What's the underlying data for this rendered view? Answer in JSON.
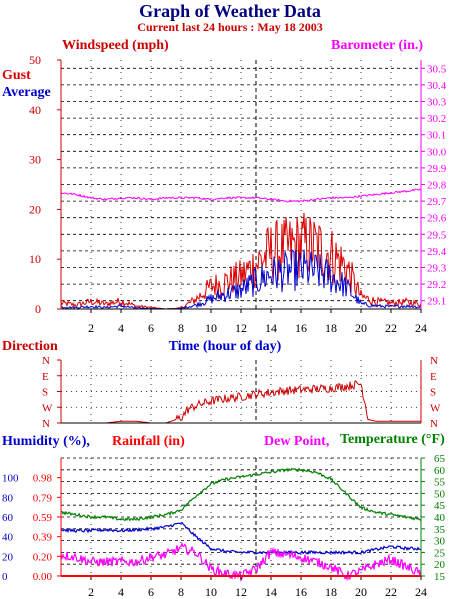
{
  "title": "Graph of Weather Data",
  "subtitle": "Current last 24 hours : May 18 2003",
  "colors": {
    "windspeed": "#ff0000",
    "gust": "#dd0000",
    "average": "#0000cc",
    "barometer": "#ff00ff",
    "direction": "#cc0000",
    "humidity": "#0000cc",
    "rainfall": "#ff0000",
    "dewpoint": "#ff00ff",
    "temperature": "#008000",
    "title": "#000080",
    "axis": "#000000"
  },
  "panel1": {
    "left_title": "Windspeed (mph)",
    "right_title": "Barometer (in.)",
    "gust_label": "Gust",
    "average_label": "Average",
    "xlabel": "Time (hour of day)"
  },
  "panel2": {
    "title": "Direction"
  },
  "panel3": {
    "humidity_label": "Humidity (%),",
    "rainfall_label": "Rainfall (in)",
    "dewpoint_label": "Dew Point,",
    "temperature_label": "Temperature (°F)"
  },
  "chart_data": [
    {
      "type": "line",
      "title": "Windspeed (mph) / Barometer (in.)",
      "xlabel": "Time (hour of day)",
      "xlim": [
        0,
        24
      ],
      "x_ticks": [
        2,
        4,
        6,
        8,
        10,
        12,
        14,
        16,
        18,
        20,
        22,
        24
      ],
      "y_left": {
        "label": "Windspeed (mph)",
        "lim": [
          0,
          50
        ],
        "ticks": [
          0,
          10,
          20,
          30,
          40,
          50
        ]
      },
      "y_right": {
        "label": "Barometer (in.)",
        "lim": [
          29.05,
          30.55
        ],
        "ticks": [
          29.1,
          29.2,
          29.3,
          29.4,
          29.5,
          29.6,
          29.7,
          29.8,
          29.9,
          30.0,
          30.1,
          30.2,
          30.3,
          30.4,
          30.5
        ]
      },
      "series": [
        {
          "name": "Gust",
          "axis": "left",
          "x": [
            0,
            1,
            2,
            3,
            4,
            5,
            6,
            7,
            8,
            9,
            10,
            11,
            12,
            13,
            14,
            15,
            16,
            17,
            18,
            19,
            20,
            21,
            22,
            23,
            24
          ],
          "values": [
            1.2,
            0.8,
            1.5,
            1.0,
            1.6,
            0.6,
            0.3,
            0,
            0.2,
            2.0,
            4.5,
            5.5,
            6.5,
            9.0,
            11.5,
            12.0,
            13.0,
            12.5,
            11.0,
            8.5,
            2.5,
            1.5,
            1.2,
            1.4,
            1.0
          ]
        },
        {
          "name": "Average",
          "axis": "left",
          "x": [
            0,
            1,
            2,
            3,
            4,
            5,
            6,
            7,
            8,
            9,
            10,
            11,
            12,
            13,
            14,
            15,
            16,
            17,
            18,
            19,
            20,
            21,
            22,
            23,
            24
          ],
          "values": [
            0.4,
            0.3,
            0.5,
            0.3,
            0.6,
            0.2,
            0.1,
            0,
            0.1,
            0.8,
            2.0,
            3.0,
            3.8,
            5.5,
            7.0,
            7.5,
            8.0,
            7.5,
            6.5,
            4.5,
            1.0,
            0.6,
            0.5,
            0.6,
            0.4
          ]
        },
        {
          "name": "Barometer",
          "axis": "right",
          "x": [
            0,
            1,
            2,
            3,
            4,
            5,
            6,
            7,
            8,
            9,
            10,
            11,
            12,
            13,
            14,
            15,
            16,
            17,
            18,
            19,
            20,
            21,
            22,
            23,
            24
          ],
          "values": [
            29.75,
            29.74,
            29.72,
            29.71,
            29.72,
            29.72,
            29.71,
            29.72,
            29.72,
            29.72,
            29.71,
            29.72,
            29.72,
            29.72,
            29.71,
            29.7,
            29.7,
            29.71,
            29.72,
            29.72,
            29.73,
            29.74,
            29.75,
            29.76,
            29.77
          ]
        }
      ]
    },
    {
      "type": "line",
      "title": "Direction",
      "xlim": [
        0,
        24
      ],
      "y_ticks": [
        "N",
        "W",
        "S",
        "E",
        "N"
      ],
      "y_values_deg": [
        0,
        90,
        180,
        270,
        360
      ],
      "series": [
        {
          "name": "Direction",
          "x": [
            0,
            1,
            2,
            3,
            4,
            5,
            6,
            7,
            8,
            8.5,
            9,
            10,
            11,
            12,
            13,
            14,
            15,
            16,
            17,
            18,
            19,
            20,
            20.5,
            21,
            22,
            23,
            24
          ],
          "values": [
            0,
            0,
            0,
            0,
            10,
            10,
            0,
            0,
            30,
            80,
            100,
            125,
            140,
            150,
            165,
            175,
            185,
            190,
            195,
            200,
            210,
            225,
            20,
            10,
            10,
            10,
            10
          ]
        }
      ]
    },
    {
      "type": "line",
      "title": "Humidity / Rainfall / Dew Point / Temperature",
      "xlim": [
        0,
        24
      ],
      "x_ticks": [
        2,
        4,
        6,
        8,
        10,
        12,
        14,
        16,
        18,
        20,
        22,
        24
      ],
      "y_humidity": {
        "label": "Humidity (%)",
        "lim": [
          0,
          120
        ],
        "ticks": [
          0,
          20,
          40,
          60,
          80,
          100
        ]
      },
      "y_rainfall": {
        "label": "Rainfall (in)",
        "ticks": [
          "0.00",
          "0.20",
          "0.39",
          "0.59",
          "0.79",
          "0.98"
        ]
      },
      "y_right": {
        "label": "Temperature (°F)",
        "lim": [
          15,
          65
        ],
        "ticks": [
          15,
          20,
          25,
          30,
          35,
          40,
          45,
          50,
          55,
          60,
          65
        ]
      },
      "series": [
        {
          "name": "Humidity",
          "axis": "humidity",
          "x": [
            0,
            1,
            2,
            3,
            4,
            5,
            6,
            7,
            8,
            9,
            10,
            11,
            12,
            13,
            14,
            15,
            16,
            17,
            18,
            19,
            20,
            21,
            22,
            23,
            24
          ],
          "values": [
            47,
            46,
            46,
            47,
            46,
            47,
            48,
            50,
            54,
            40,
            28,
            25,
            24,
            24,
            24,
            24,
            24,
            24,
            24,
            24,
            24,
            27,
            30,
            28,
            28
          ]
        },
        {
          "name": "Temperature",
          "axis": "right",
          "x": [
            0,
            1,
            2,
            3,
            4,
            5,
            6,
            7,
            8,
            9,
            10,
            11,
            12,
            13,
            14,
            15,
            16,
            17,
            18,
            19,
            20,
            21,
            22,
            23,
            24
          ],
          "values": [
            42,
            41,
            40,
            40,
            39,
            39,
            40,
            41,
            43,
            49,
            54,
            56,
            57,
            58,
            59,
            60,
            60,
            59,
            56,
            50,
            44,
            42,
            41,
            40,
            39
          ]
        },
        {
          "name": "Dew Point",
          "axis": "right",
          "x": [
            0,
            1,
            2,
            3,
            4,
            5,
            6,
            7,
            8,
            9,
            10,
            11,
            12,
            13,
            14,
            15,
            16,
            17,
            18,
            19,
            20,
            21,
            22,
            23,
            24
          ],
          "values": [
            24,
            23,
            21,
            21,
            21,
            21,
            23,
            24,
            27,
            25,
            18,
            16,
            15,
            18,
            25,
            24,
            23,
            21,
            19,
            15,
            17,
            20,
            22,
            19,
            16
          ]
        }
      ]
    }
  ]
}
